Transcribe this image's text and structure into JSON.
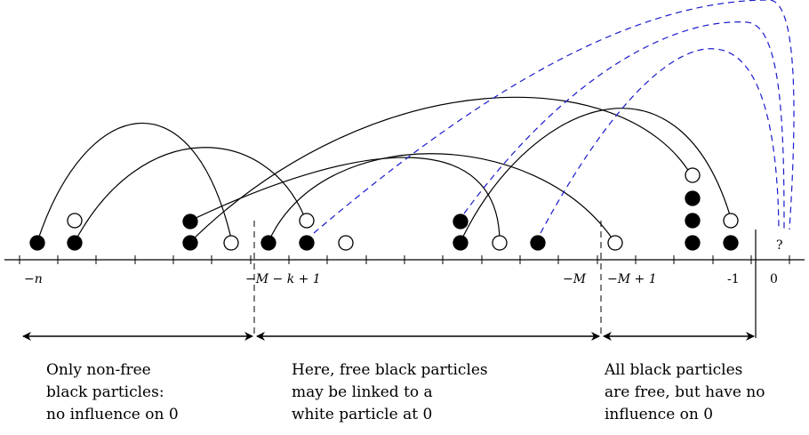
{
  "axis_labels": {
    "neg_n": "−n",
    "neg_M_minus_k_plus_1": "−M − k + 1",
    "neg_M": "−M",
    "neg_M_plus_1": "−M + 1",
    "neg_1": "-1",
    "zero": "0",
    "unknown": "?"
  },
  "regions": [
    {
      "lines": [
        "Only non-free",
        "black particles:",
        "no influence on 0"
      ]
    },
    {
      "lines": [
        "Here, free black particles",
        "may be linked to a",
        "white particle at 0"
      ]
    },
    {
      "lines": [
        "All black particles",
        "are free, but have no",
        "influence on 0"
      ]
    }
  ],
  "colors": {
    "ink": "#000000",
    "dashed_link": "#1a1acc",
    "white_fill": "#ffffff"
  }
}
